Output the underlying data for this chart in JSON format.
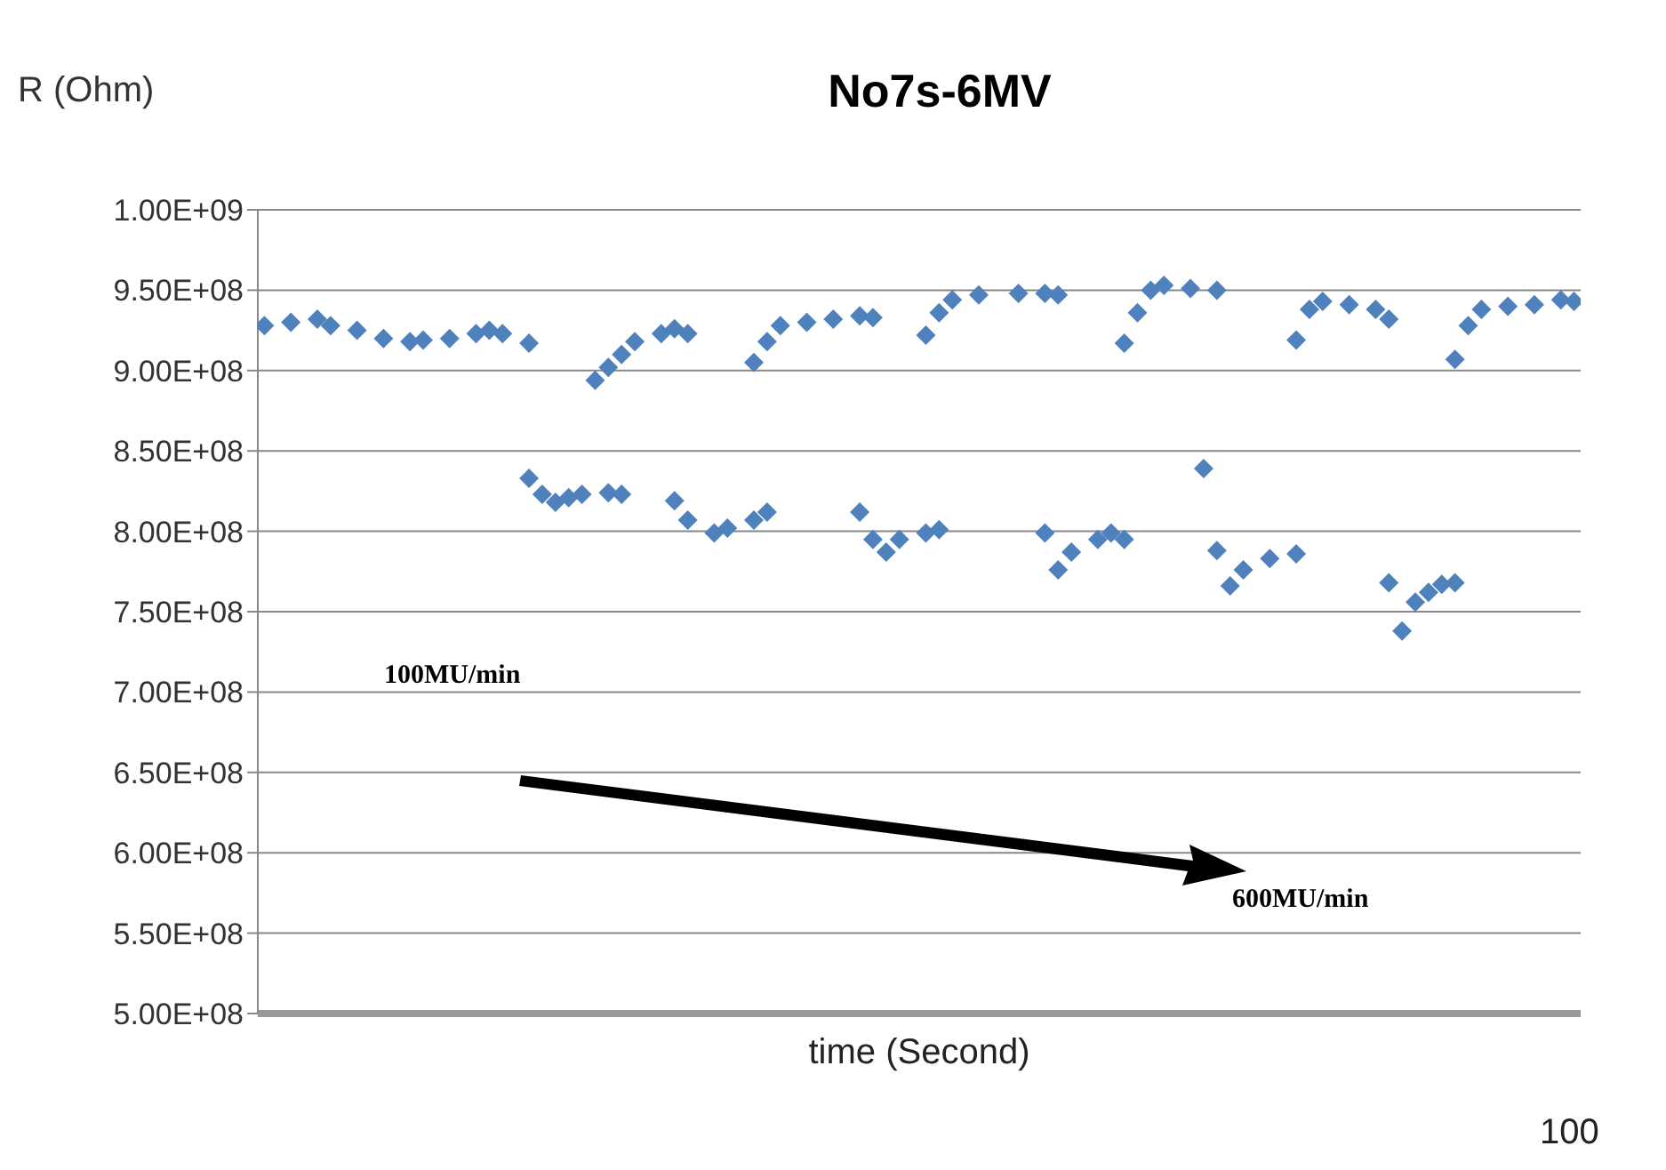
{
  "chart_data": {
    "type": "scatter",
    "title": "No7s-6MV",
    "xlabel": "time (Second)",
    "ylabel": "R (Ohm)",
    "categories": [
      null,
      null,
      null,
      null,
      null,
      null,
      null,
      null,
      null,
      null,
      null,
      null,
      null,
      null,
      null,
      null,
      null,
      null,
      null,
      null,
      null,
      null,
      null,
      null,
      null,
      null,
      null,
      null,
      null,
      null,
      null,
      null,
      null,
      null,
      null,
      null,
      null,
      null,
      null,
      null,
      null,
      null,
      null,
      null,
      null,
      null,
      null,
      null,
      null,
      null,
      null,
      null,
      null,
      null,
      null,
      null,
      null,
      null,
      null,
      null,
      null,
      null,
      null,
      null,
      null,
      null,
      null,
      null,
      null,
      null,
      null,
      null,
      null,
      null,
      null,
      null,
      null,
      null,
      null,
      null,
      null,
      null,
      null,
      null,
      null,
      null,
      null,
      null,
      null,
      null,
      null,
      null,
      null,
      null,
      null,
      null,
      null,
      null,
      null,
      null
    ],
    "ylim": [
      500000000,
      1000000000
    ],
    "yticks": [
      {
        "value": 500000000,
        "label": "5.00E+08"
      },
      {
        "value": 550000000,
        "label": "5.50E+08"
      },
      {
        "value": 600000000,
        "label": "6.00E+08"
      },
      {
        "value": 650000000,
        "label": "6.50E+08"
      },
      {
        "value": 700000000,
        "label": "7.00E+08"
      },
      {
        "value": 750000000,
        "label": "7.50E+08"
      },
      {
        "value": 800000000,
        "label": "8.00E+08"
      },
      {
        "value": 850000000,
        "label": "8.50E+08"
      },
      {
        "value": 900000000,
        "label": "9.00E+08"
      },
      {
        "value": 950000000,
        "label": "9.50E+08"
      },
      {
        "value": 1000000000,
        "label": "1.00E+09"
      }
    ],
    "grid": "y",
    "marker": "diamond",
    "annotations": [
      "100MU/min",
      "600MU/min",
      "100"
    ],
    "series": [
      {
        "color": "#4f81bd",
        "values": [
          928000000,
          null,
          930000000,
          null,
          932000000,
          928000000,
          null,
          925000000,
          null,
          920000000,
          null,
          918000000,
          919000000,
          null,
          920000000,
          null,
          923000000,
          925000000,
          923000000,
          null,
          917000000,
          null,
          null,
          null,
          null,
          894000000,
          902000000,
          910000000,
          918000000,
          null,
          923000000,
          926000000,
          923000000,
          null,
          null,
          null,
          null,
          905000000,
          918000000,
          928000000,
          null,
          930000000,
          null,
          932000000,
          null,
          934000000,
          933000000,
          null,
          null,
          null,
          922000000,
          936000000,
          944000000,
          null,
          947000000,
          null,
          null,
          948000000,
          null,
          948000000,
          947000000,
          null,
          null,
          null,
          null,
          917000000,
          936000000,
          950000000,
          953000000,
          null,
          951000000,
          null,
          950000000,
          null,
          null,
          null,
          null,
          null,
          919000000,
          938000000,
          943000000,
          null,
          941000000,
          null,
          938000000,
          932000000,
          null,
          null,
          null,
          null,
          907000000,
          928000000,
          938000000,
          null,
          940000000,
          null,
          941000000,
          null,
          944000000,
          943000000
        ]
      },
      {
        "color": "#4f81bd",
        "values": [
          null,
          null,
          null,
          null,
          null,
          null,
          null,
          null,
          null,
          null,
          null,
          null,
          null,
          null,
          null,
          null,
          null,
          null,
          null,
          null,
          833000000,
          823000000,
          818000000,
          821000000,
          823000000,
          null,
          824000000,
          823000000,
          null,
          null,
          null,
          819000000,
          807000000,
          null,
          799000000,
          802000000,
          null,
          807000000,
          812000000,
          null,
          null,
          null,
          null,
          null,
          null,
          812000000,
          795000000,
          787000000,
          795000000,
          null,
          799000000,
          801000000,
          null,
          null,
          null,
          null,
          null,
          null,
          null,
          799000000,
          776000000,
          787000000,
          null,
          795000000,
          799000000,
          795000000,
          null,
          null,
          null,
          null,
          null,
          839000000,
          788000000,
          766000000,
          776000000,
          null,
          783000000,
          null,
          786000000,
          null,
          null,
          null,
          null,
          null,
          null,
          768000000,
          738000000,
          756000000,
          762000000,
          767000000,
          768000000,
          null,
          null,
          null,
          null,
          null,
          null,
          null,
          null,
          null
        ]
      }
    ]
  }
}
